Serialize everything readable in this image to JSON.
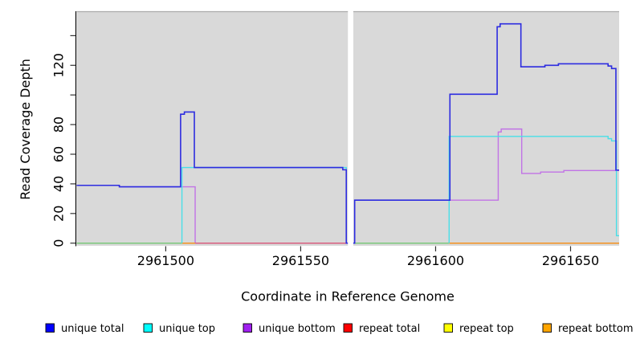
{
  "chart_data": {
    "type": "line",
    "subtype": "step-coverage-plot",
    "title": "",
    "xlabel": "Coordinate in Reference Genome",
    "ylabel": "Read Coverage Depth",
    "xlim": [
      2961467,
      2961668
    ],
    "ylim": [
      0,
      156
    ],
    "grid": false,
    "legend_position": "bottom",
    "x_ticks": [
      {
        "v": 2961500,
        "label": "2961500"
      },
      {
        "v": 2961550,
        "label": "2961550"
      },
      {
        "v": 2961600,
        "label": "2961600"
      },
      {
        "v": 2961650,
        "label": "2961650"
      }
    ],
    "y_ticks": [
      {
        "v": 0,
        "label": "0"
      },
      {
        "v": 20,
        "label": "20"
      },
      {
        "v": 40,
        "label": "40"
      },
      {
        "v": 60,
        "label": "60"
      },
      {
        "v": 80,
        "label": "80"
      },
      {
        "v": 100,
        "label": ""
      },
      {
        "v": 120,
        "label": "120"
      },
      {
        "v": 140,
        "label": ""
      }
    ],
    "no_data_gap_x": [
      2961567.5,
      2961569.5
    ],
    "colors": {
      "plot_background": "#d9d9d9",
      "plot_top_border": "#ababab",
      "axis_line": "#000000",
      "tick_mark": "#333333",
      "gap_fill": "#ffffff"
    },
    "series": [
      {
        "name": "unique total",
        "line_color": "#2d2ce0",
        "paths": [
          [
            [
              2961467,
              39
            ],
            [
              2961482.8,
              39
            ],
            [
              2961482.8,
              38
            ],
            [
              2961505.5,
              38
            ],
            [
              2961505.5,
              87
            ],
            [
              2961506.9,
              87
            ],
            [
              2961506.9,
              88.5
            ],
            [
              2961510.6,
              88.5
            ],
            [
              2961510.6,
              51
            ],
            [
              2961565.6,
              51
            ],
            [
              2961565.6,
              49.5
            ],
            [
              2961566.9,
              49.5
            ],
            [
              2961566.9,
              0
            ],
            [
              2961567.5,
              0
            ]
          ],
          [
            [
              2961569.5,
              0
            ],
            [
              2961570,
              0
            ],
            [
              2961570,
              29
            ],
            [
              2961605.3,
              29
            ],
            [
              2961605.3,
              100.5
            ],
            [
              2961622.8,
              100.5
            ],
            [
              2961622.8,
              146
            ],
            [
              2961623.9,
              146
            ],
            [
              2961623.9,
              148
            ],
            [
              2961631.6,
              148
            ],
            [
              2961631.6,
              119
            ],
            [
              2961640.5,
              119
            ],
            [
              2961640.5,
              120
            ],
            [
              2961645.5,
              120
            ],
            [
              2961645.5,
              121
            ],
            [
              2961663.9,
              121
            ],
            [
              2961663.9,
              119.5
            ],
            [
              2961665.2,
              119.5
            ],
            [
              2961665.2,
              117.8
            ],
            [
              2961666.8,
              117.8
            ],
            [
              2961666.8,
              49.3
            ],
            [
              2961668,
              49.3
            ]
          ]
        ]
      },
      {
        "name": "unique top",
        "line_color": "#48dfe8",
        "paths": [
          [
            [
              2961506,
              0
            ],
            [
              2961506,
              51
            ],
            [
              2961566.9,
              51
            ],
            [
              2961566.9,
              0
            ]
          ],
          [
            [
              2961605,
              0
            ],
            [
              2961605,
              72
            ],
            [
              2961663.9,
              72
            ],
            [
              2961663.9,
              70.5
            ],
            [
              2961665.2,
              70.5
            ],
            [
              2961665.2,
              69
            ],
            [
              2961667,
              69
            ],
            [
              2961667,
              5
            ],
            [
              2961668,
              5
            ]
          ]
        ]
      },
      {
        "name": "unique bottom",
        "line_color": "#c173e6",
        "paths": [
          [
            [
              2961467,
              39
            ],
            [
              2961482.8,
              39
            ],
            [
              2961482.8,
              38
            ],
            [
              2961510.9,
              38
            ],
            [
              2961510.9,
              0
            ],
            [
              2961567.5,
              0
            ]
          ],
          [
            [
              2961569.5,
              0
            ],
            [
              2961570,
              0
            ],
            [
              2961570,
              29
            ],
            [
              2961623.2,
              29
            ],
            [
              2961623.2,
              75
            ],
            [
              2961624.3,
              75
            ],
            [
              2961624.3,
              77
            ],
            [
              2961631.9,
              77
            ],
            [
              2961631.9,
              47
            ],
            [
              2961638.9,
              47
            ],
            [
              2961638.9,
              48
            ],
            [
              2961647.5,
              48
            ],
            [
              2961647.5,
              49
            ],
            [
              2961668,
              49
            ]
          ]
        ]
      },
      {
        "name": "repeat total",
        "line_color": "#ff0000",
        "constant_value": 0,
        "paths": []
      },
      {
        "name": "repeat top",
        "line_color": "#ffff00",
        "constant_value": 0,
        "paths": []
      },
      {
        "name": "repeat bottom",
        "line_color": "#ffa500",
        "constant_value": 0,
        "paths": []
      }
    ],
    "baseline_overlap_segments": [
      {
        "from": 2961467,
        "to": 2961506,
        "color": "#7cc87c",
        "represents": "overlapping zero-depth lines (unique top over repeat top)"
      },
      {
        "from": 2961506,
        "to": 2961510.9,
        "color": "#f59220",
        "represents": "repeat bottom at 0"
      },
      {
        "from": 2961510.9,
        "to": 2961567.5,
        "color": "#d85f7f",
        "represents": "overlapping zero-depth lines (unique bottom over repeat total)"
      },
      {
        "from": 2961569.5,
        "to": 2961605,
        "color": "#7cc87c",
        "represents": "overlapping zero-depth lines (unique top over repeat top)"
      },
      {
        "from": 2961605,
        "to": 2961668,
        "color": "#f59220",
        "represents": "repeat bottom at 0"
      }
    ]
  },
  "legend": {
    "swatch_border_color": "#000000",
    "items": [
      {
        "label": "unique total",
        "color": "#0000ff"
      },
      {
        "label": "unique top",
        "color": "#00ffff"
      },
      {
        "label": "unique bottom",
        "color": "#a020f0"
      },
      {
        "label": "repeat total",
        "color": "#ff0000"
      },
      {
        "label": "repeat top",
        "color": "#ffff00"
      },
      {
        "label": "repeat bottom",
        "color": "#ffa500"
      }
    ]
  }
}
